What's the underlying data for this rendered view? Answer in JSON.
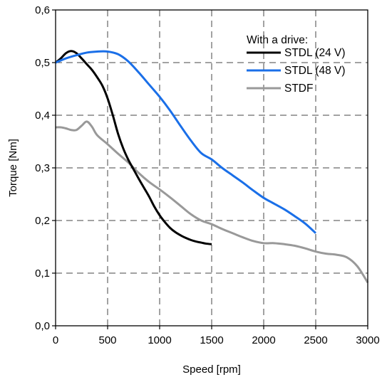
{
  "chart_data": {
    "type": "line",
    "title": "",
    "xlabel": "Speed [rpm]",
    "ylabel": "Torque [Nm]",
    "xlim": [
      0,
      3000
    ],
    "ylim": [
      0,
      0.6
    ],
    "grid": true,
    "legend_placement": "top-right",
    "legend_title": "With a drive:",
    "x_ticks": [
      0,
      500,
      1000,
      1500,
      2000,
      2500,
      3000
    ],
    "x_tick_labels": [
      "0",
      "500",
      "1000",
      "1500",
      "2000",
      "2500",
      "3000"
    ],
    "y_ticks": [
      0,
      0.1,
      0.2,
      0.3,
      0.4,
      0.5,
      0.6
    ],
    "y_tick_labels": [
      "0,0",
      "0,1",
      "0,2",
      "0,3",
      "0,4",
      "0,5",
      "0,6"
    ],
    "series": [
      {
        "name": "STDL (24 V)",
        "color": "#000000",
        "points": [
          [
            0,
            0.5
          ],
          [
            50,
            0.508
          ],
          [
            100,
            0.518
          ],
          [
            150,
            0.522
          ],
          [
            200,
            0.518
          ],
          [
            250,
            0.508
          ],
          [
            300,
            0.497
          ],
          [
            350,
            0.486
          ],
          [
            400,
            0.472
          ],
          [
            450,
            0.456
          ],
          [
            500,
            0.432
          ],
          [
            550,
            0.4
          ],
          [
            600,
            0.365
          ],
          [
            650,
            0.337
          ],
          [
            700,
            0.315
          ],
          [
            750,
            0.297
          ],
          [
            800,
            0.279
          ],
          [
            850,
            0.262
          ],
          [
            900,
            0.245
          ],
          [
            950,
            0.226
          ],
          [
            1000,
            0.21
          ],
          [
            1050,
            0.197
          ],
          [
            1100,
            0.186
          ],
          [
            1150,
            0.178
          ],
          [
            1200,
            0.172
          ],
          [
            1250,
            0.167
          ],
          [
            1300,
            0.163
          ],
          [
            1350,
            0.16
          ],
          [
            1400,
            0.158
          ],
          [
            1450,
            0.156
          ],
          [
            1500,
            0.155
          ]
        ]
      },
      {
        "name": "STDL (48 V)",
        "color": "#1a6fe8",
        "points": [
          [
            0,
            0.5
          ],
          [
            100,
            0.508
          ],
          [
            200,
            0.514
          ],
          [
            300,
            0.519
          ],
          [
            400,
            0.521
          ],
          [
            500,
            0.521
          ],
          [
            600,
            0.516
          ],
          [
            700,
            0.502
          ],
          [
            800,
            0.481
          ],
          [
            900,
            0.458
          ],
          [
            1000,
            0.435
          ],
          [
            1100,
            0.409
          ],
          [
            1200,
            0.38
          ],
          [
            1300,
            0.352
          ],
          [
            1400,
            0.328
          ],
          [
            1500,
            0.316
          ],
          [
            1600,
            0.3
          ],
          [
            1700,
            0.286
          ],
          [
            1800,
            0.272
          ],
          [
            1900,
            0.257
          ],
          [
            2000,
            0.243
          ],
          [
            2100,
            0.232
          ],
          [
            2200,
            0.221
          ],
          [
            2300,
            0.208
          ],
          [
            2400,
            0.194
          ],
          [
            2500,
            0.176
          ]
        ]
      },
      {
        "name": "STDF",
        "color": "#999999",
        "points": [
          [
            0,
            0.377
          ],
          [
            50,
            0.377
          ],
          [
            100,
            0.375
          ],
          [
            150,
            0.372
          ],
          [
            200,
            0.372
          ],
          [
            250,
            0.38
          ],
          [
            300,
            0.388
          ],
          [
            350,
            0.378
          ],
          [
            400,
            0.362
          ],
          [
            500,
            0.345
          ],
          [
            600,
            0.327
          ],
          [
            700,
            0.31
          ],
          [
            800,
            0.29
          ],
          [
            900,
            0.273
          ],
          [
            1000,
            0.259
          ],
          [
            1100,
            0.244
          ],
          [
            1200,
            0.228
          ],
          [
            1300,
            0.212
          ],
          [
            1400,
            0.2
          ],
          [
            1500,
            0.193
          ],
          [
            1600,
            0.184
          ],
          [
            1700,
            0.176
          ],
          [
            1800,
            0.168
          ],
          [
            1900,
            0.161
          ],
          [
            2000,
            0.157
          ],
          [
            2100,
            0.157
          ],
          [
            2200,
            0.155
          ],
          [
            2300,
            0.152
          ],
          [
            2400,
            0.147
          ],
          [
            2500,
            0.141
          ],
          [
            2600,
            0.137
          ],
          [
            2700,
            0.135
          ],
          [
            2800,
            0.13
          ],
          [
            2900,
            0.113
          ],
          [
            3000,
            0.082
          ]
        ]
      }
    ]
  }
}
